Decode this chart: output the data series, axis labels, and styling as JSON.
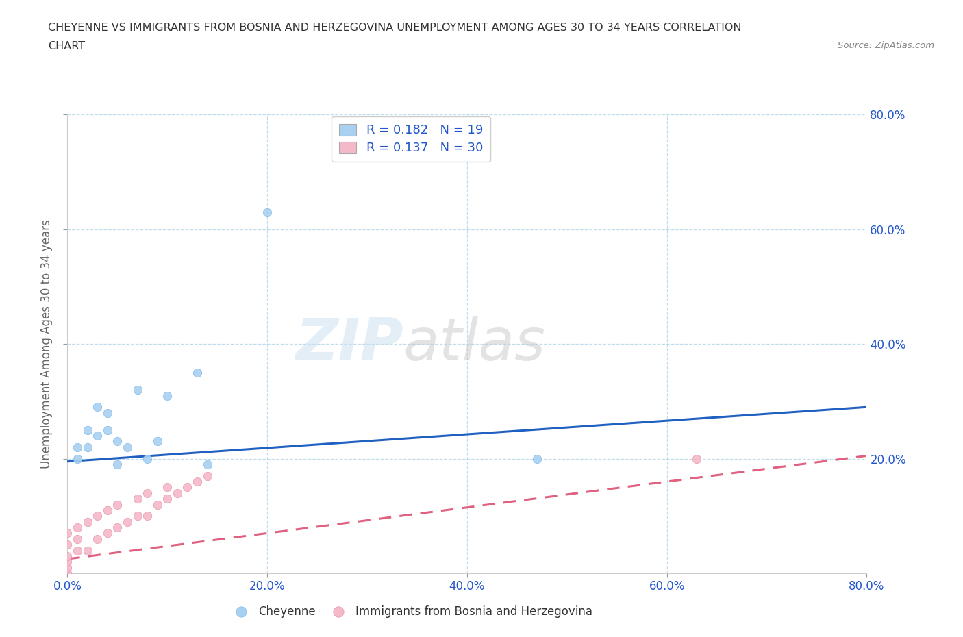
{
  "title_line1": "CHEYENNE VS IMMIGRANTS FROM BOSNIA AND HERZEGOVINA UNEMPLOYMENT AMONG AGES 30 TO 34 YEARS CORRELATION",
  "title_line2": "CHART",
  "source_text": "Source: ZipAtlas.com",
  "ylabel": "Unemployment Among Ages 30 to 34 years",
  "xlim": [
    0.0,
    0.8
  ],
  "ylim": [
    0.0,
    0.8
  ],
  "xtick_values": [
    0.0,
    0.2,
    0.4,
    0.6,
    0.8
  ],
  "ytick_values": [
    0.2,
    0.4,
    0.6,
    0.8
  ],
  "right_ytick_values": [
    0.2,
    0.4,
    0.6,
    0.8
  ],
  "cheyenne_color": "#a8d0f0",
  "cheyenne_edge": "#7ab8e8",
  "bosnia_color": "#f5b8c8",
  "bosnia_edge": "#e890a8",
  "cheyenne_R": 0.182,
  "cheyenne_N": 19,
  "bosnia_R": 0.137,
  "bosnia_N": 30,
  "cheyenne_scatter_x": [
    0.01,
    0.01,
    0.02,
    0.02,
    0.03,
    0.03,
    0.04,
    0.04,
    0.05,
    0.05,
    0.06,
    0.07,
    0.08,
    0.09,
    0.1,
    0.13,
    0.14,
    0.47,
    0.2
  ],
  "cheyenne_scatter_y": [
    0.2,
    0.22,
    0.22,
    0.25,
    0.24,
    0.29,
    0.25,
    0.28,
    0.19,
    0.23,
    0.22,
    0.32,
    0.2,
    0.23,
    0.31,
    0.35,
    0.19,
    0.2,
    0.63
  ],
  "bosnia_scatter_x": [
    0.0,
    0.0,
    0.0,
    0.0,
    0.0,
    0.0,
    0.01,
    0.01,
    0.01,
    0.02,
    0.02,
    0.03,
    0.03,
    0.04,
    0.04,
    0.05,
    0.05,
    0.06,
    0.07,
    0.07,
    0.08,
    0.08,
    0.09,
    0.1,
    0.1,
    0.11,
    0.12,
    0.13,
    0.14,
    0.63
  ],
  "bosnia_scatter_y": [
    0.0,
    0.01,
    0.02,
    0.03,
    0.05,
    0.07,
    0.04,
    0.06,
    0.08,
    0.04,
    0.09,
    0.06,
    0.1,
    0.07,
    0.11,
    0.08,
    0.12,
    0.09,
    0.1,
    0.13,
    0.1,
    0.14,
    0.12,
    0.13,
    0.15,
    0.14,
    0.15,
    0.16,
    0.17,
    0.2
  ],
  "cheyenne_line_x": [
    0.0,
    0.8
  ],
  "cheyenne_line_y": [
    0.195,
    0.29
  ],
  "bosnia_line_x": [
    0.0,
    0.8
  ],
  "bosnia_line_y": [
    0.025,
    0.205
  ],
  "cheyenne_trend_color": "#2060c0",
  "bosnia_trend_color": "#e06080",
  "watermark_zip": "ZIP",
  "watermark_atlas": "atlas",
  "legend_label_cheyenne": "Cheyenne",
  "legend_label_bosnia": "Immigrants from Bosnia and Herzegovina",
  "background_color": "#ffffff",
  "grid_color": "#b0d4e8",
  "title_color": "#333333",
  "stat_color": "#2255cc",
  "tick_color": "#2255cc"
}
